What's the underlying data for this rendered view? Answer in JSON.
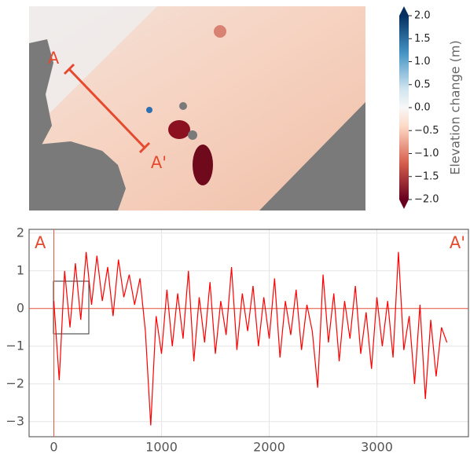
{
  "chart_data": [
    {
      "type": "heatmap",
      "colorbar_label": "Elevation change (m)",
      "clim": [
        -2,
        2
      ],
      "colorbar_ticks": [
        {
          "value": 2,
          "label": "2.0"
        },
        1.5,
        {
          "value": 1,
          "label": "1.0"
        },
        0.5,
        {
          "value": 0,
          "label": "0.0"
        },
        {
          "value": -0.5,
          "label": "−0.5"
        },
        {
          "value": -1,
          "label": "−1.0"
        },
        {
          "value": -1.5,
          "label": "−1.5"
        },
        {
          "value": -2,
          "label": "−2.0"
        }
      ],
      "annotations": [
        "A",
        "A'"
      ]
    },
    {
      "type": "line",
      "annotations": [
        "A",
        "A'"
      ],
      "x": [
        0,
        50,
        100,
        150,
        200,
        250,
        300,
        350,
        400,
        450,
        500,
        550,
        600,
        650,
        700,
        750,
        800,
        850,
        900,
        950,
        1000,
        1050,
        1100,
        1150,
        1200,
        1250,
        1300,
        1350,
        1400,
        1450,
        1500,
        1550,
        1600,
        1650,
        1700,
        1750,
        1800,
        1850,
        1900,
        1950,
        2000,
        2050,
        2100,
        2150,
        2200,
        2250,
        2300,
        2350,
        2400,
        2450,
        2500,
        2550,
        2600,
        2650,
        2700,
        2750,
        2800,
        2850,
        2900,
        2950,
        3000,
        3050,
        3100,
        3150,
        3200,
        3250,
        3300,
        3350,
        3400,
        3450,
        3500,
        3550,
        3600,
        3650
      ],
      "series": [
        {
          "color": "#ff0000",
          "values": [
            0.2,
            -1.9,
            1.0,
            -0.5,
            1.2,
            -0.3,
            1.5,
            0.1,
            1.4,
            0.2,
            1.1,
            -0.2,
            1.3,
            0.3,
            0.9,
            0.1,
            0.8,
            -0.6,
            -3.1,
            -0.2,
            -1.2,
            0.5,
            -1.0,
            0.4,
            -0.8,
            1.0,
            -1.4,
            0.3,
            -0.9,
            0.7,
            -1.2,
            0.2,
            -0.7,
            1.1,
            -1.1,
            0.4,
            -0.6,
            0.6,
            -1.0,
            0.3,
            -0.8,
            0.8,
            -1.3,
            0.2,
            -0.7,
            0.5,
            -1.1,
            0.1,
            -0.6,
            -2.1,
            0.9,
            -0.9,
            0.4,
            -1.4,
            0.2,
            -0.8,
            0.6,
            -1.2,
            -0.1,
            -1.6,
            0.3,
            -1.0,
            0.2,
            -1.3,
            1.5,
            -1.1,
            -0.2,
            -2.0,
            0.1,
            -2.4,
            -0.3,
            -1.8,
            -0.5,
            -0.9
          ]
        }
      ],
      "xlim": [
        -230,
        3850
      ],
      "ylim": [
        -3.4,
        2.1
      ],
      "xticks": [
        0,
        1000,
        2000,
        3000
      ],
      "yticks": [
        {
          "value": -3,
          "label": "−3"
        },
        {
          "value": -2,
          "label": "−2"
        },
        {
          "value": -1,
          "label": "−1"
        },
        0,
        1,
        2
      ],
      "grid": true,
      "reference_lines": {
        "x": 0,
        "y": 0
      },
      "reference_color": "#e8553f"
    }
  ]
}
